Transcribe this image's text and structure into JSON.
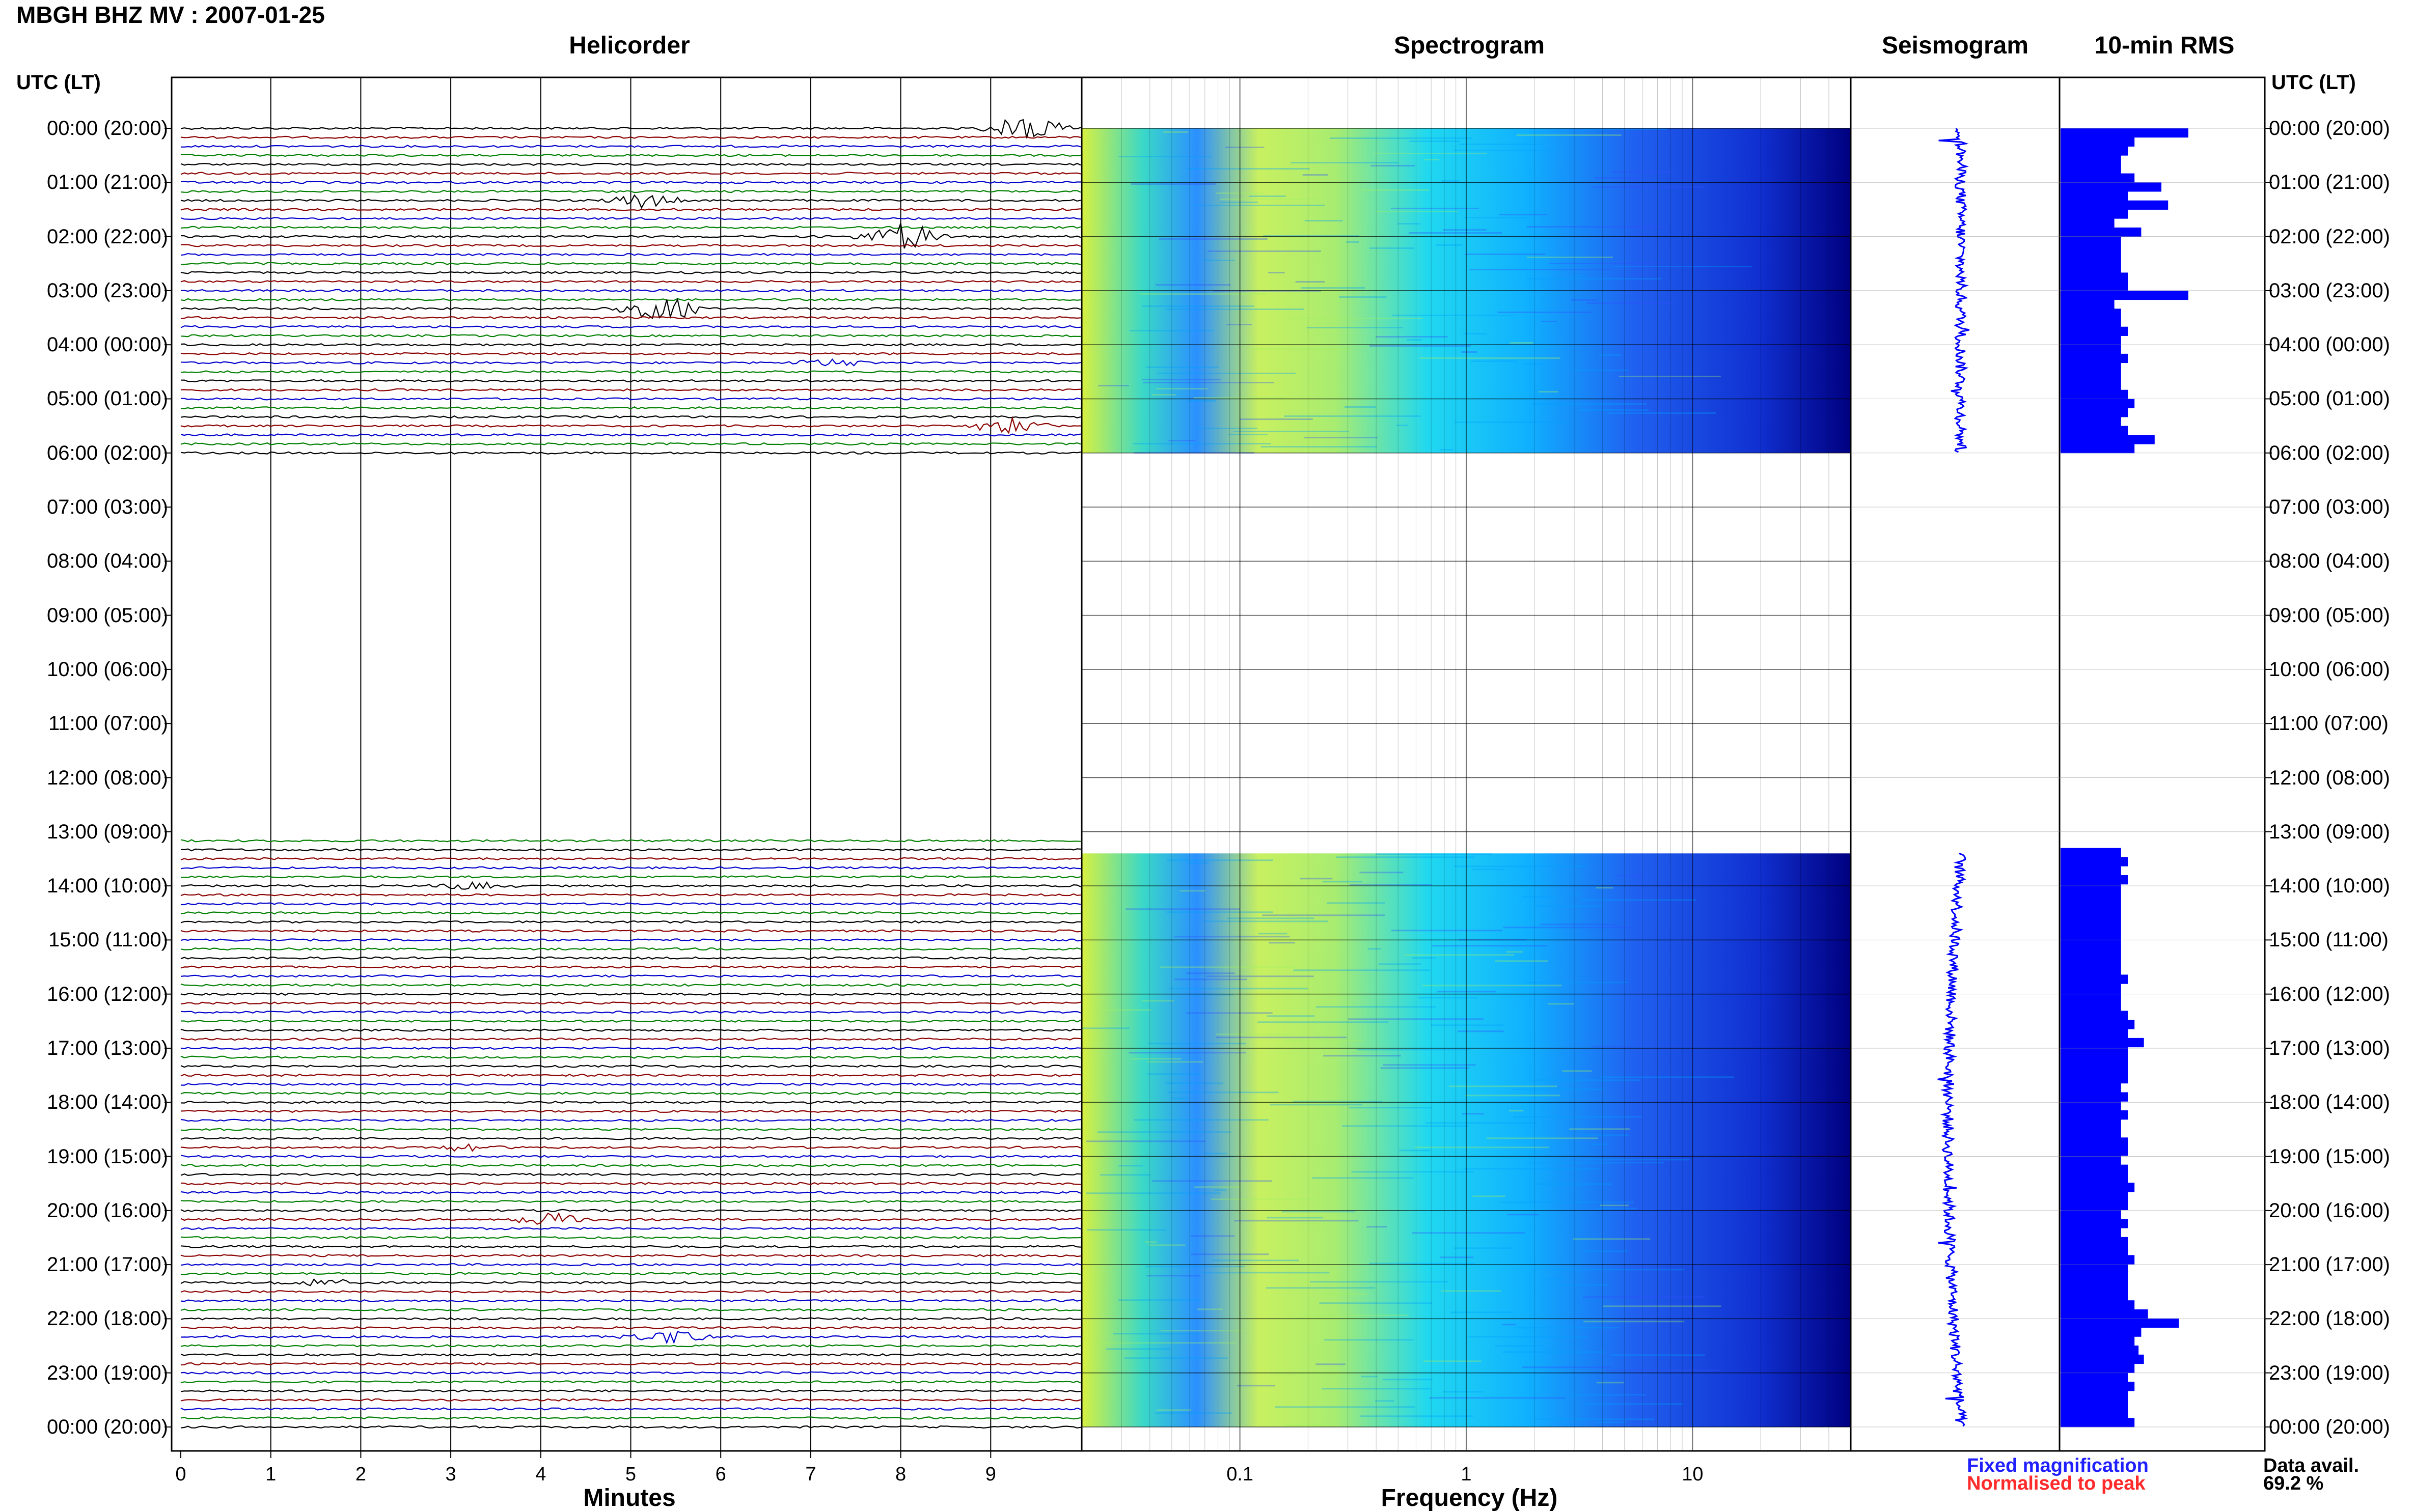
{
  "title": "MBGH BHZ MV : 2007-01-25",
  "panels": {
    "helicorder": "Helicorder",
    "spectrogram": "Spectrogram",
    "seismogram": "Seismogram",
    "rms": "10-min RMS"
  },
  "time_axis_header": "UTC (LT)",
  "time_labels": [
    "00:00 (20:00)",
    "01:00 (21:00)",
    "02:00 (22:00)",
    "03:00 (23:00)",
    "04:00 (00:00)",
    "05:00 (01:00)",
    "06:00 (02:00)",
    "07:00 (03:00)",
    "08:00 (04:00)",
    "09:00 (05:00)",
    "10:00 (06:00)",
    "11:00 (07:00)",
    "12:00 (08:00)",
    "13:00 (09:00)",
    "14:00 (10:00)",
    "15:00 (11:00)",
    "16:00 (12:00)",
    "17:00 (13:00)",
    "18:00 (14:00)",
    "19:00 (15:00)",
    "20:00 (16:00)",
    "21:00 (17:00)",
    "22:00 (18:00)",
    "23:00 (19:00)",
    "00:00 (20:00)"
  ],
  "legend": {
    "fixed": "Fixed magnification",
    "normalised": "Normalised to peak"
  },
  "availability": {
    "label": "Data avail.",
    "value": "69.2 %"
  },
  "colors": {
    "trace_cycle": [
      "#000000",
      "#8b0000",
      "#0000cd",
      "#008000"
    ],
    "rms_bar": "#0000ff",
    "seismogram": "#0000ff",
    "legend_fixed": "#1f1fff",
    "legend_normalised": "#ff2a2a",
    "spectrogram_low": "#00008b",
    "spectrogram_mid": "#00c8ff",
    "spectrogram_high": "#ffff00"
  },
  "chart_data": [
    {
      "type": "line",
      "title": "Helicorder",
      "xlabel": "Minutes",
      "xlim": [
        0,
        10
      ],
      "xticks": [
        0,
        1,
        2,
        3,
        4,
        5,
        6,
        7,
        8,
        9
      ],
      "ylabel": "UTC (LT)",
      "ylim_hours": [
        0,
        24
      ],
      "trace_interval_minutes": 10,
      "data_segments_hours": [
        [
          0,
          6
        ],
        [
          13.1,
          24
        ]
      ],
      "events": [
        {
          "hour": 0,
          "minute": 9.4,
          "amplitude": "large"
        },
        {
          "hour": 1.3,
          "minute": 5.1,
          "amplitude": "medium"
        },
        {
          "hour": 2,
          "minute": 8.0,
          "amplitude": "large"
        },
        {
          "hour": 3.3,
          "minute": 5.3,
          "amplitude": "large"
        },
        {
          "hour": 4.3,
          "minute": 7.2,
          "amplitude": "small"
        },
        {
          "hour": 5.5,
          "minute": 9.2,
          "amplitude": "medium"
        },
        {
          "hour": 14.0,
          "minute": 3.2,
          "amplitude": "small"
        },
        {
          "hour": 18.8,
          "minute": 3.2,
          "amplitude": "small"
        },
        {
          "hour": 20.2,
          "minute": 4.1,
          "amplitude": "medium"
        },
        {
          "hour": 21.3,
          "minute": 1.5,
          "amplitude": "small"
        },
        {
          "hour": 22.3,
          "minute": 5.4,
          "amplitude": "medium"
        }
      ]
    },
    {
      "type": "heatmap",
      "title": "Spectrogram",
      "xlabel": "Frequency (Hz)",
      "xscale": "log",
      "xlim": [
        0.02,
        50
      ],
      "xticks": [
        0.1,
        1,
        10
      ],
      "ylim_hours": [
        0,
        24
      ],
      "data_segments_hours": [
        [
          0,
          6
        ],
        [
          13.4,
          24
        ]
      ]
    },
    {
      "type": "line",
      "title": "Seismogram",
      "ylim_hours": [
        0,
        24
      ],
      "data_segments_hours": [
        [
          0,
          6
        ],
        [
          13.4,
          24
        ]
      ]
    },
    {
      "type": "bar",
      "title": "10-min RMS",
      "orientation": "horizontal",
      "ylim_hours": [
        0,
        24
      ],
      "data_segments_hours": [
        [
          0,
          6
        ],
        [
          13.3,
          24
        ]
      ],
      "relative_values_early": [
        0.95,
        0.55,
        0.5,
        0.45,
        0.45,
        0.55,
        0.75,
        0.5,
        0.8,
        0.5,
        0.4,
        0.6,
        0.45,
        0.45,
        0.45,
        0.45,
        0.5,
        0.5,
        0.95,
        0.4,
        0.45,
        0.45,
        0.5,
        0.45,
        0.45,
        0.5,
        0.45,
        0.45,
        0.45,
        0.5,
        0.55,
        0.5,
        0.45,
        0.5,
        0.7,
        0.55
      ],
      "relative_values_late": [
        0.45,
        0.5,
        0.45,
        0.5,
        0.45,
        0.45,
        0.45,
        0.45,
        0.45,
        0.45,
        0.45,
        0.45,
        0.45,
        0.45,
        0.5,
        0.45,
        0.45,
        0.45,
        0.5,
        0.55,
        0.5,
        0.62,
        0.5,
        0.5,
        0.5,
        0.5,
        0.45,
        0.5,
        0.45,
        0.5,
        0.45,
        0.45,
        0.5,
        0.5,
        0.45,
        0.5,
        0.5,
        0.55,
        0.5,
        0.5,
        0.45,
        0.5,
        0.45,
        0.5,
        0.5,
        0.55,
        0.5,
        0.5,
        0.5,
        0.5,
        0.55,
        0.65,
        0.88,
        0.6,
        0.55,
        0.58,
        0.62,
        0.55,
        0.5,
        0.55,
        0.5,
        0.5,
        0.5,
        0.55
      ]
    }
  ]
}
